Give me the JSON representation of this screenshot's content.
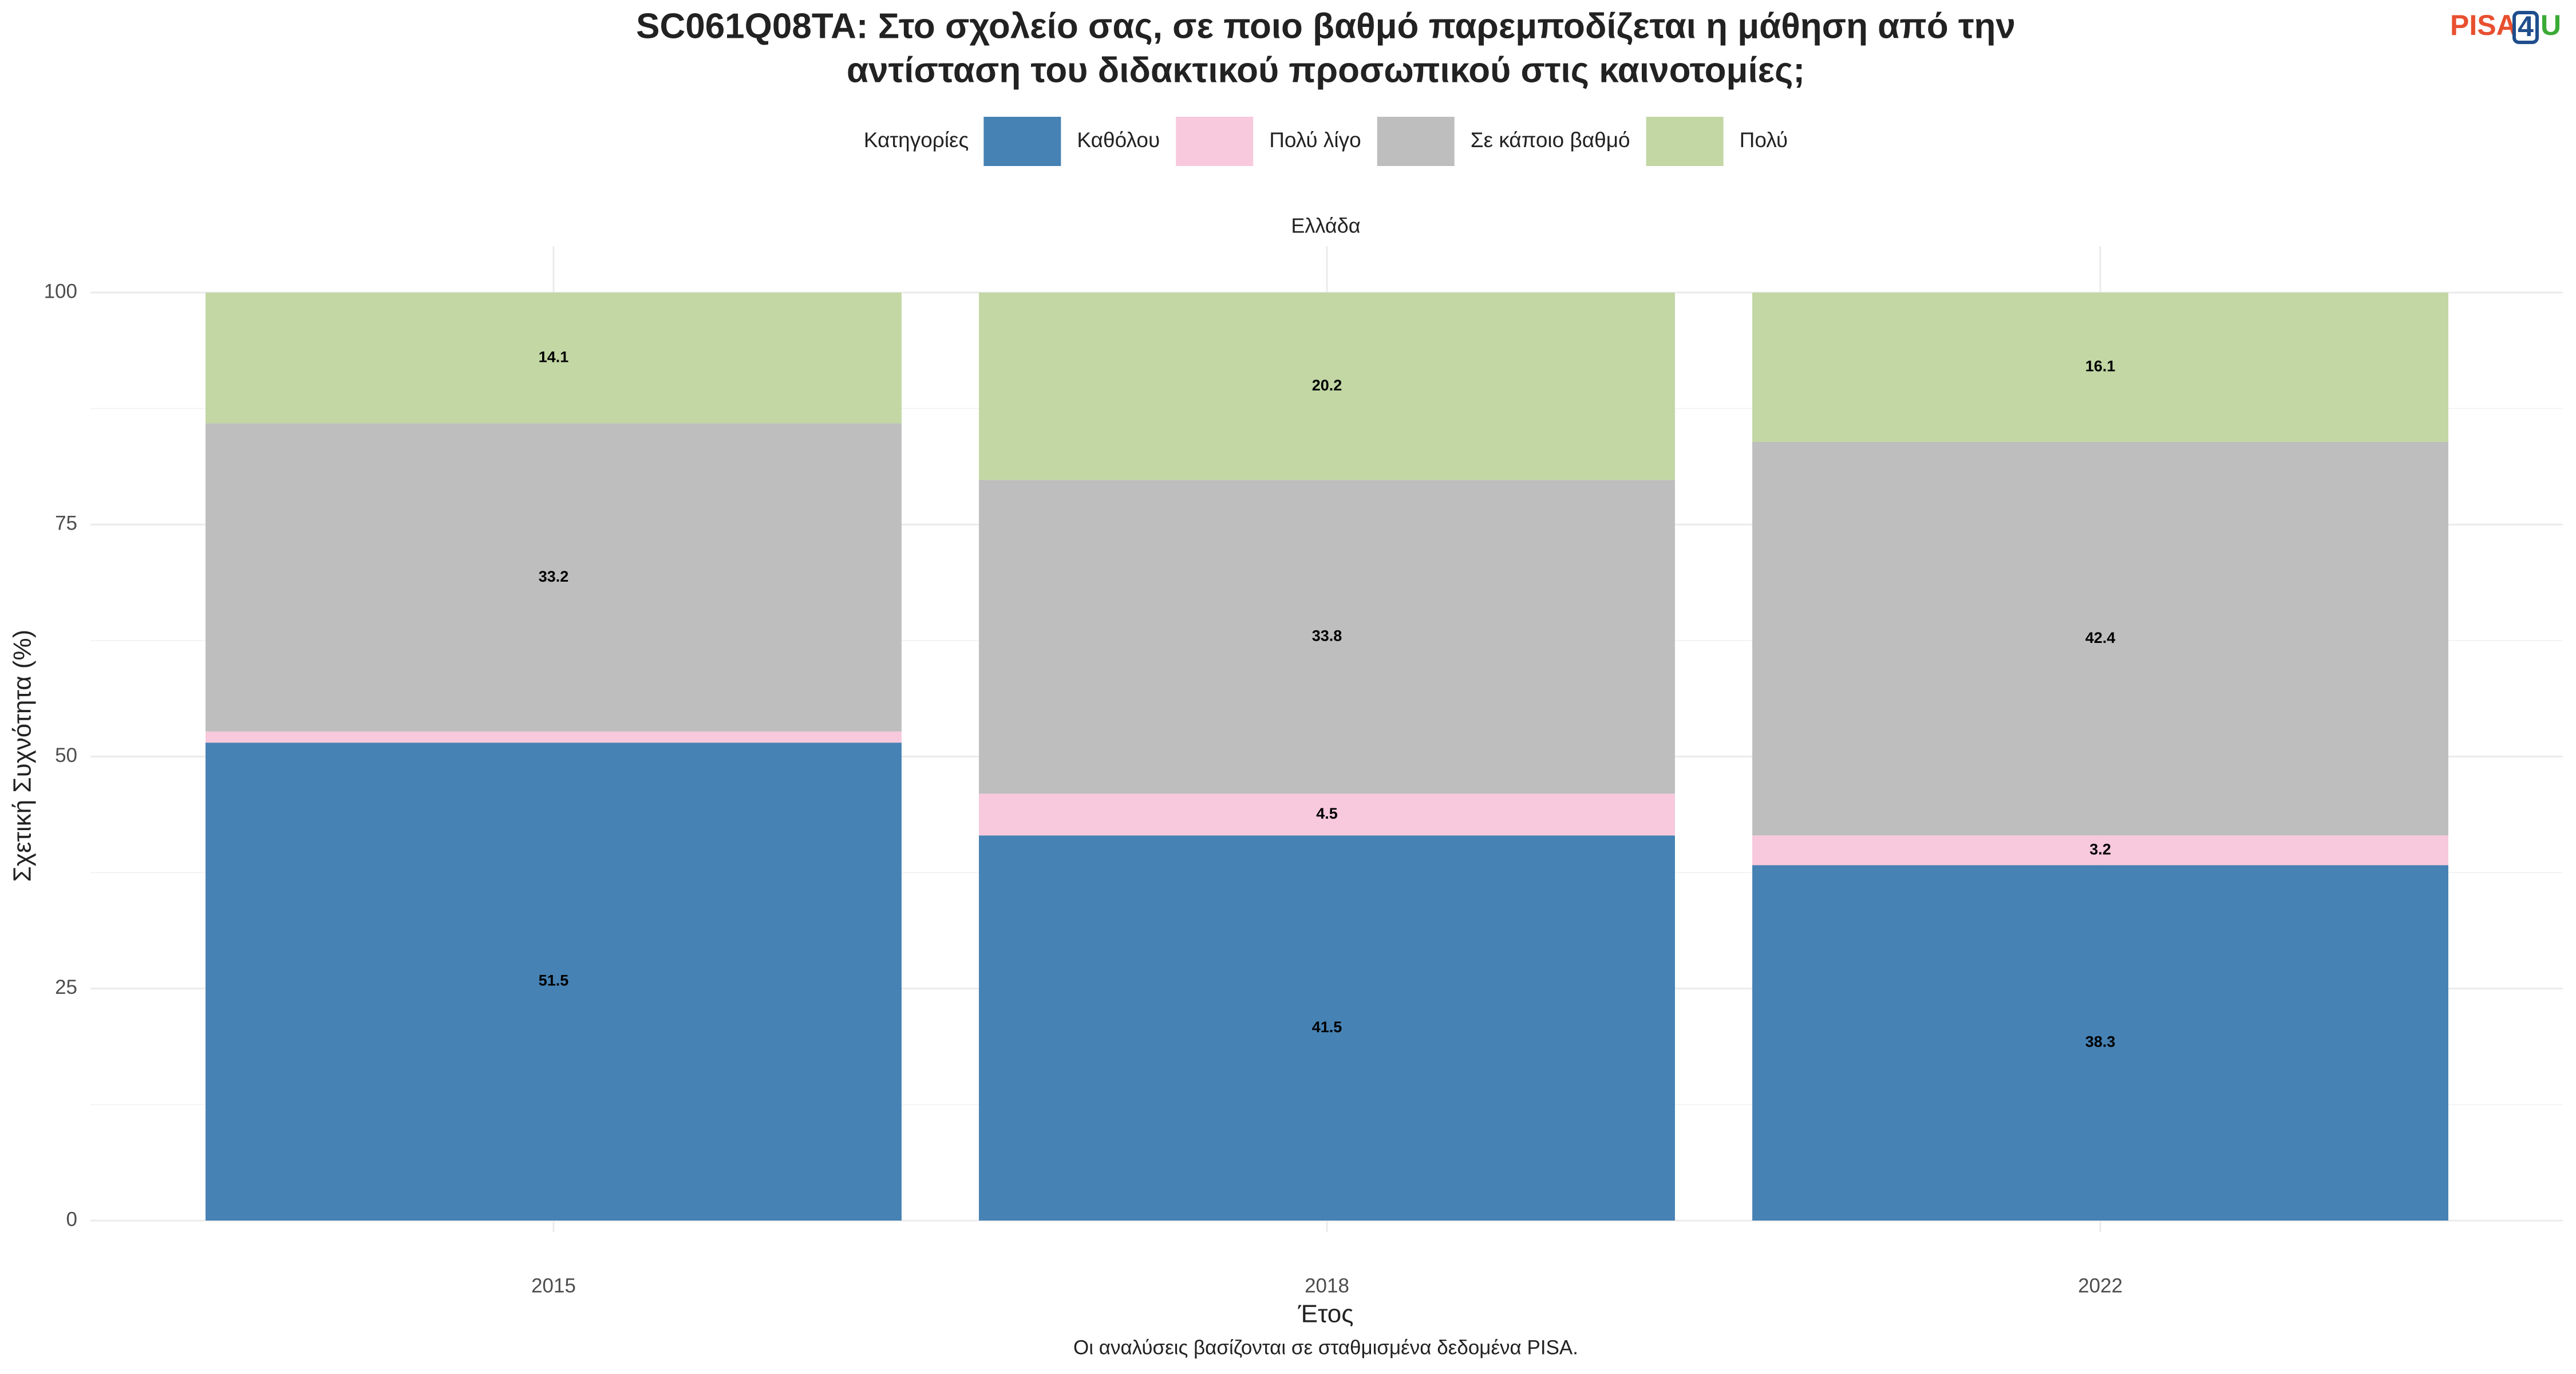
{
  "chart_data": {
    "type": "stacked-bar",
    "title": [
      "SC061Q08TA: Στο σχολείο σας, σε ποιο βαθμό παρεμποδίζεται η μάθηση από την",
      "αντίσταση του διδακτικού προσωπικού στις καινοτομίες;"
    ],
    "legend_title": "Κατηγορίες",
    "facet": "Ελλάδα",
    "x_label": "Έτος",
    "y_label": "Σχετική Συχνότητα (%)",
    "caption": "Οι αναλύσεις βασίζονται σε σταθμισμένα δεδομένα PISA.",
    "logo": [
      "PISA",
      "4",
      "U"
    ],
    "categories": [
      "2015",
      "2018",
      "2022"
    ],
    "series": [
      {
        "name": "Καθόλου",
        "color": "#4682b4",
        "values": [
          51.5,
          41.5,
          38.3
        ]
      },
      {
        "name": "Πολύ λίγο",
        "color": "#f8c8dc",
        "values": [
          1.2,
          4.5,
          3.2
        ],
        "value_labels": [
          null,
          "4.5",
          "3.2"
        ]
      },
      {
        "name": "Σε κάποιο βαθμό",
        "color": "#bebebe",
        "values": [
          33.2,
          33.8,
          42.4
        ]
      },
      {
        "name": "Πολύ",
        "color": "#c2d7a4",
        "values": [
          14.1,
          20.2,
          16.1
        ]
      }
    ],
    "ylim": [
      0,
      100
    ],
    "yticks": [
      0,
      25,
      50,
      75,
      100
    ],
    "grid": true,
    "legend": "top"
  }
}
